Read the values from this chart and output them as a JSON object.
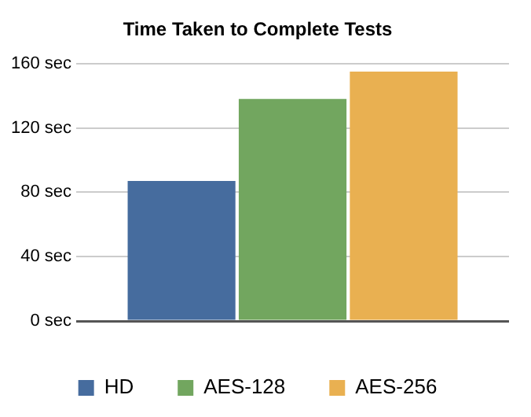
{
  "chart_data": {
    "type": "bar",
    "title": "Time Taken to Complete Tests",
    "categories": [
      null
    ],
    "series": [
      {
        "name": "HD",
        "color": "#466c9e",
        "values": [
          87
        ]
      },
      {
        "name": "AES-128",
        "color": "#72a65f",
        "values": [
          138
        ]
      },
      {
        "name": "AES-256",
        "color": "#e9b051",
        "values": [
          155
        ]
      }
    ],
    "ylim": [
      0,
      160
    ],
    "yticks": [
      {
        "value": 0,
        "label": "0 sec"
      },
      {
        "value": 40,
        "label": "40 sec"
      },
      {
        "value": 80,
        "label": "80 sec"
      },
      {
        "value": 120,
        "label": "120 sec"
      },
      {
        "value": 160,
        "label": "160 sec"
      }
    ],
    "grid": "y",
    "legend": "bottom"
  }
}
